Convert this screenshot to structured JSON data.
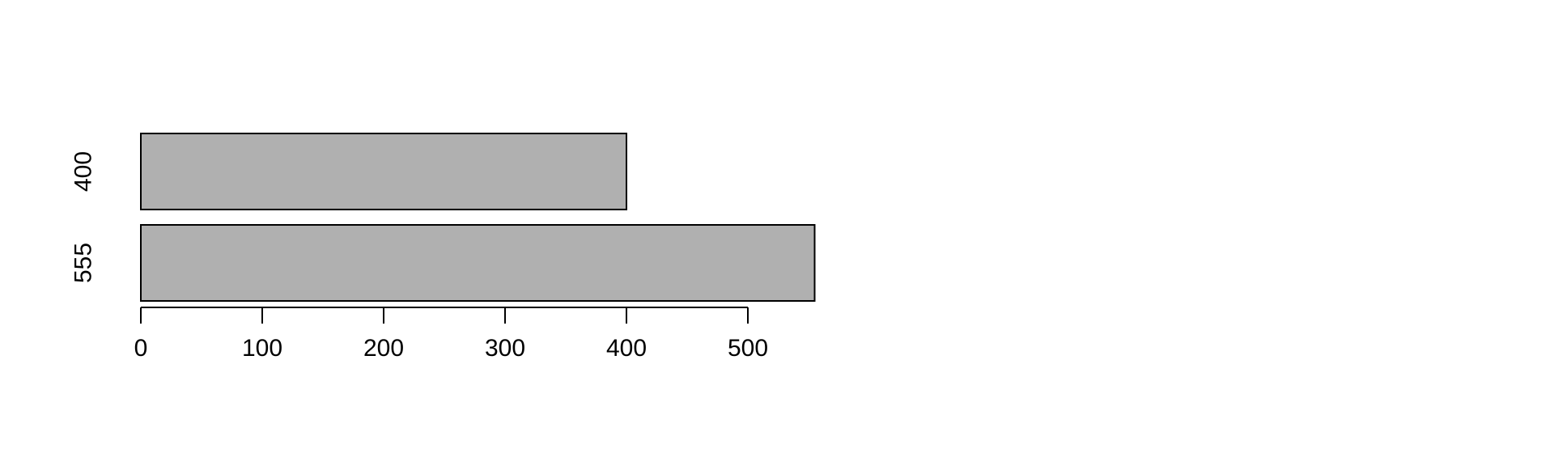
{
  "chart_data": {
    "type": "bar",
    "orientation": "horizontal",
    "categories": [
      "555",
      "400"
    ],
    "values": [
      555,
      400
    ],
    "title": "",
    "xlabel": "",
    "ylabel": "",
    "xlim": [
      0,
      555
    ],
    "x_ticks": [
      0,
      100,
      200,
      300,
      400,
      500
    ],
    "x_tick_labels": [
      "0",
      "100",
      "200",
      "300",
      "400",
      "500"
    ],
    "grid": false,
    "legend": "none",
    "bar_fill": "#b0b0b0",
    "bar_stroke": "#000000"
  }
}
